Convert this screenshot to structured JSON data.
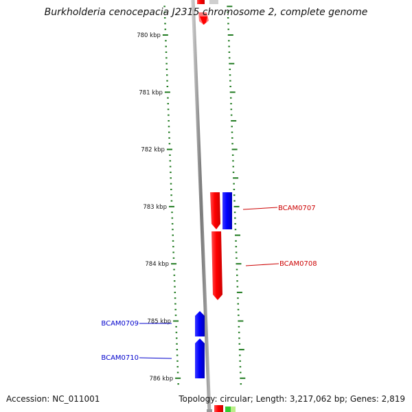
{
  "header": {
    "title": "Burkholderia cenocepacia J2315 chromosome 2, complete genome"
  },
  "footer": {
    "accession": "Accession: NC_011001",
    "stats": "Topology: circular; Length: 3,217,062 bp; Genes: 2,819"
  },
  "ruler": {
    "ticks": [
      {
        "kbp": 780,
        "label": "780 kbp"
      },
      {
        "kbp": 781,
        "label": "781 kbp"
      },
      {
        "kbp": 782,
        "label": "782 kbp"
      },
      {
        "kbp": 783,
        "label": "783 kbp"
      },
      {
        "kbp": 784,
        "label": "784 kbp"
      },
      {
        "kbp": 785,
        "label": "785 kbp"
      },
      {
        "kbp": 786,
        "label": "786 kbp"
      }
    ]
  },
  "genes": [
    {
      "name": "BCAM0707",
      "strand": "+",
      "color": "#cc0000"
    },
    {
      "name": "BCAM0708",
      "strand": "+",
      "color": "#cc0000"
    },
    {
      "name": "BCAM0709",
      "strand": "-",
      "color": "#0000cc"
    },
    {
      "name": "BCAM0710",
      "strand": "-",
      "color": "#0000cc"
    }
  ],
  "colors": {
    "forward_strand": "#ff0000",
    "reverse_strand": "#0000ff",
    "ruler": "#1f7a1f",
    "backbone": "#888888"
  }
}
